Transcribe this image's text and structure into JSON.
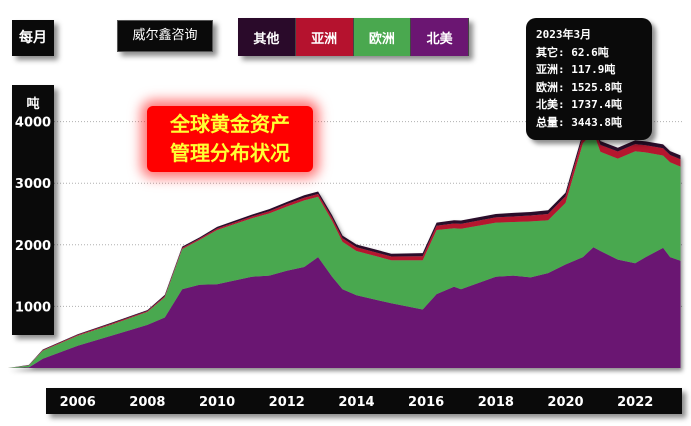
{
  "period_label": "每月",
  "source_label": "威尔鑫咨询",
  "unit_label": "吨",
  "headline": [
    "全球黄金资产",
    "管理分布状况"
  ],
  "legend": [
    {
      "label": "其他",
      "color": "#2a0a2a"
    },
    {
      "label": "亚洲",
      "color": "#b5122e"
    },
    {
      "label": "欧洲",
      "color": "#4aa84f"
    },
    {
      "label": "北美",
      "color": "#6b1672"
    }
  ],
  "summary": [
    "2023年3月",
    "其它: 62.6吨",
    "亚洲: 117.9吨",
    "欧洲: 1525.8吨",
    "北美: 1737.4吨",
    "总量: 3443.8吨"
  ],
  "colors": {
    "other": "#2a0a2a",
    "asia": "#b5122e",
    "europe": "#4aa84f",
    "north_america": "#6b1672"
  },
  "chart_data": {
    "type": "area",
    "stacked": true,
    "ylim": [
      0,
      5000
    ],
    "yticks": [
      1000,
      2000,
      3000,
      4000
    ],
    "xlim": [
      2004.0,
      2023.4
    ],
    "xticks": [
      2006,
      2008,
      2010,
      2012,
      2014,
      2016,
      2018,
      2020,
      2022
    ],
    "grid": true,
    "x": [
      2004.0,
      2004.6,
      2005.0,
      2006.0,
      2007.0,
      2008.0,
      2008.5,
      2009.0,
      2009.5,
      2010.0,
      2011.0,
      2011.5,
      2012.0,
      2012.5,
      2012.9,
      2013.3,
      2013.6,
      2014.0,
      2015.0,
      2015.9,
      2016.3,
      2016.8,
      2017.0,
      2018.0,
      2018.5,
      2019.0,
      2019.5,
      2020.0,
      2020.5,
      2020.8,
      2021.0,
      2021.5,
      2022.0,
      2022.3,
      2022.8,
      2023.0,
      2023.3
    ],
    "series": [
      {
        "name": "北美",
        "values": [
          0,
          10,
          150,
          360,
          530,
          700,
          820,
          1280,
          1350,
          1360,
          1480,
          1500,
          1580,
          1640,
          1800,
          1480,
          1280,
          1180,
          1050,
          950,
          1200,
          1320,
          1280,
          1480,
          1500,
          1470,
          1540,
          1680,
          1800,
          1960,
          1900,
          1760,
          1700,
          1800,
          1950,
          1800,
          1740
        ]
      },
      {
        "name": "欧洲",
        "values": [
          0,
          30,
          130,
          165,
          180,
          210,
          330,
          650,
          730,
          880,
          950,
          1010,
          1040,
          1080,
          980,
          910,
          770,
          720,
          700,
          800,
          1040,
          950,
          980,
          880,
          870,
          910,
          860,
          1000,
          1850,
          1870,
          1610,
          1640,
          1820,
          1700,
          1500,
          1540,
          1530
        ]
      },
      {
        "name": "亚洲",
        "values": [
          0,
          5,
          10,
          12,
          15,
          15,
          18,
          20,
          20,
          25,
          30,
          35,
          40,
          45,
          45,
          50,
          55,
          60,
          60,
          65,
          70,
          75,
          80,
          85,
          90,
          95,
          100,
          105,
          110,
          110,
          112,
          115,
          115,
          116,
          117,
          118,
          118
        ]
      },
      {
        "name": "其他",
        "values": [
          0,
          5,
          10,
          12,
          15,
          15,
          18,
          20,
          20,
          25,
          30,
          35,
          35,
          40,
          40,
          40,
          45,
          45,
          45,
          50,
          50,
          55,
          55,
          55,
          58,
          58,
          60,
          60,
          62,
          62,
          62,
          62,
          63,
          63,
          63,
          63,
          63
        ]
      }
    ]
  }
}
